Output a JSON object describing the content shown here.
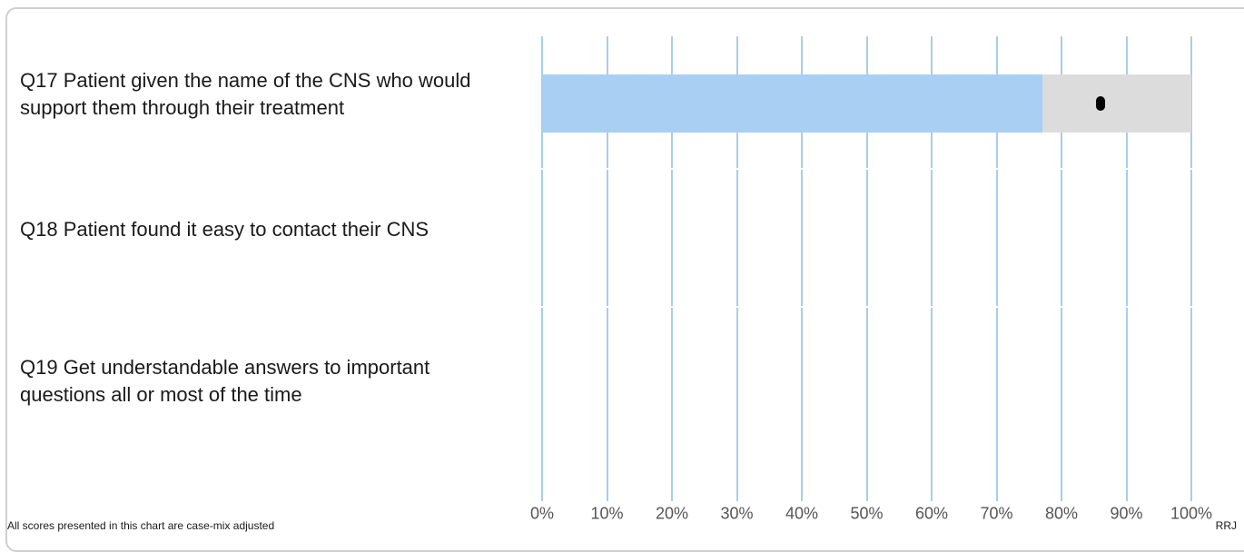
{
  "chart_data": {
    "type": "bar",
    "orientation": "horizontal",
    "categories": [
      "Q17 Patient given the name of the CNS who would support them through their treatment",
      "Q18 Patient found it easy to contact their CNS",
      "Q19 Get understandable answers to important questions all or most of the time"
    ],
    "series": [
      {
        "values": [
          77,
          null,
          null
        ]
      }
    ],
    "score_markers": [
      86,
      null,
      null
    ],
    "xlim": [
      0,
      100
    ],
    "x_ticks": [
      "0%",
      "10%",
      "20%",
      "30%",
      "40%",
      "50%",
      "60%",
      "70%",
      "80%",
      "90%",
      "100%"
    ],
    "grid": true,
    "colors": {
      "bar": "#a9cff2",
      "remainder": "#dcdcdc",
      "grid": "#a9cde8",
      "marker": "#000000"
    }
  },
  "footnote": "All scores presented in this chart are case-mix adjusted",
  "trust_code": "RRJ"
}
